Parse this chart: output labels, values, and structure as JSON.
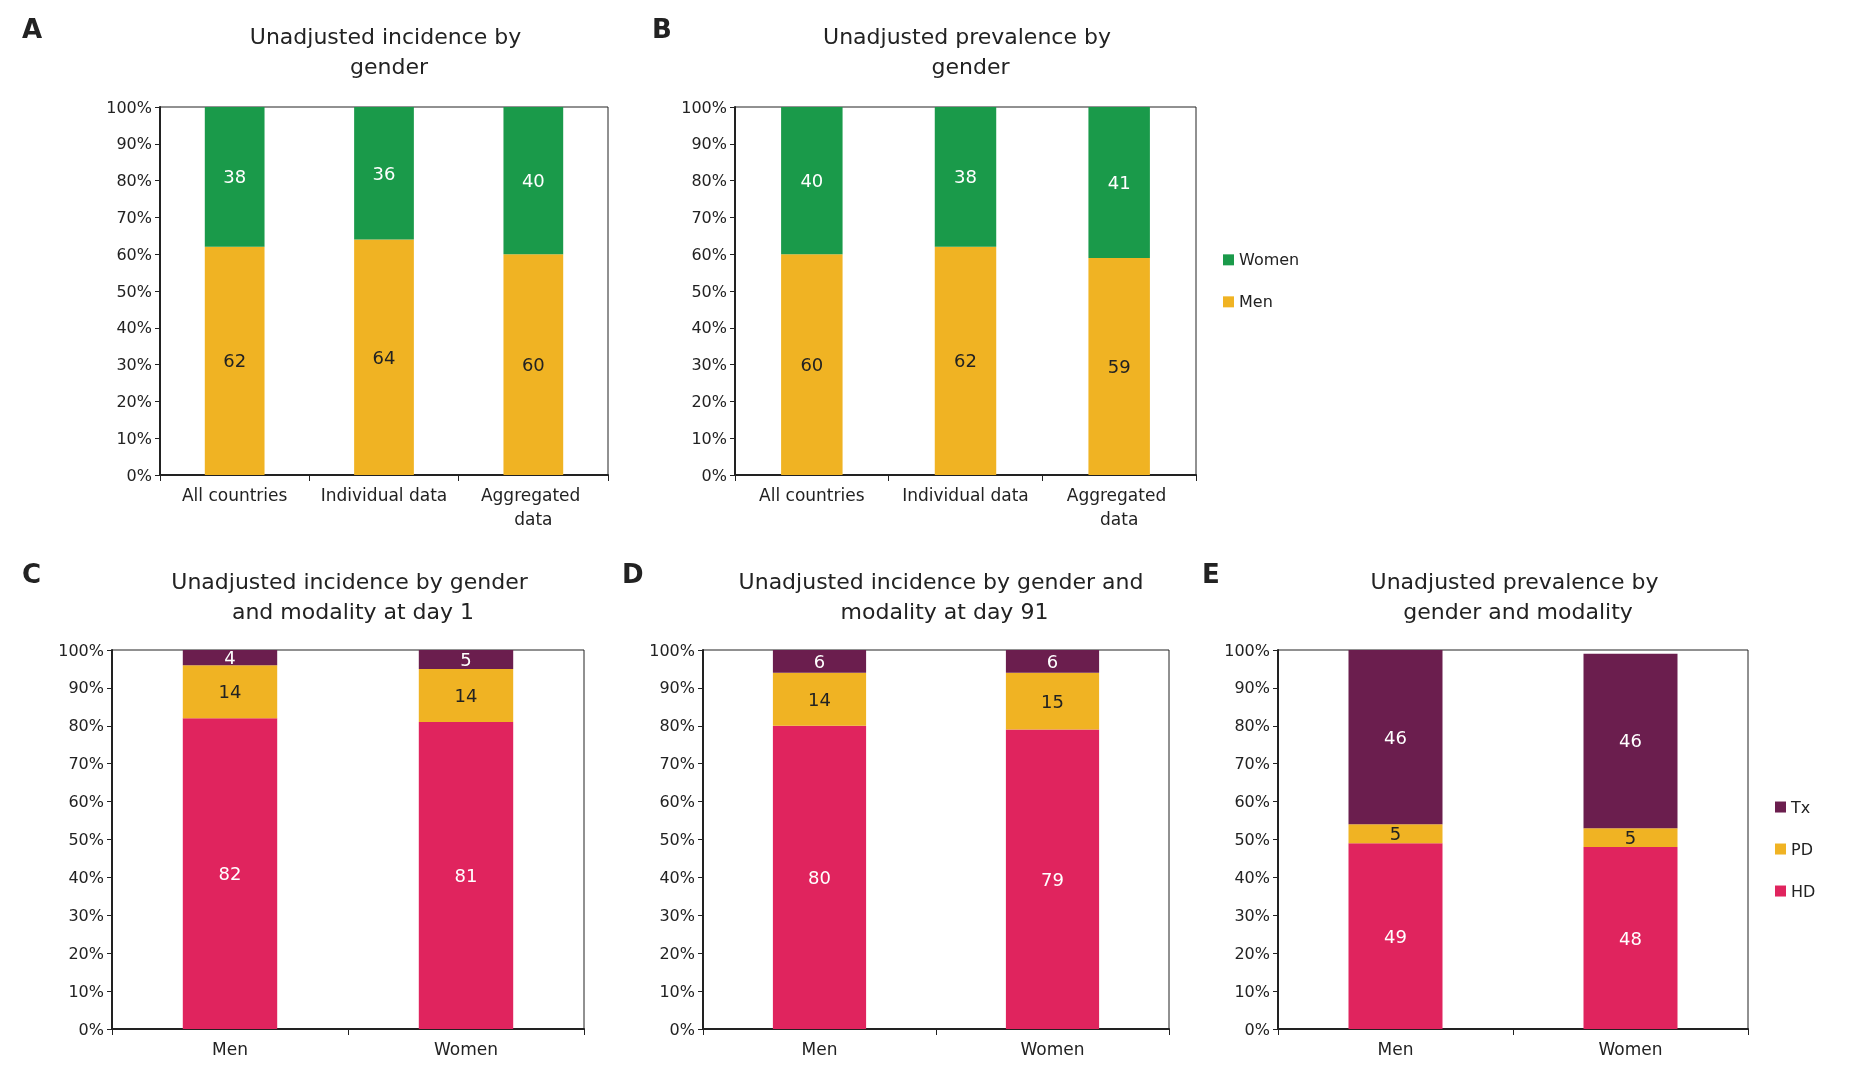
{
  "chart_data": [
    {
      "type": "bar",
      "title": "Unadjusted incidence by gender",
      "annotations": [
        "A"
      ],
      "stacked": true,
      "categories": [
        "All countries",
        "Individual data",
        "Aggregated data"
      ],
      "series": [
        {
          "color": "#f0b323",
          "values": [
            62,
            64,
            60
          ]
        },
        {
          "color": "#1a9a4a",
          "values": [
            38,
            36,
            40
          ]
        }
      ],
      "ylim": [
        0,
        100
      ],
      "yticks": [
        {
          "value": 0,
          "label": "0%"
        },
        {
          "value": 10,
          "label": "10%"
        },
        {
          "value": 20,
          "label": "20%"
        },
        {
          "value": 30,
          "label": "30%"
        },
        {
          "value": 40,
          "label": "40%"
        },
        {
          "value": 50,
          "label": "50%"
        },
        {
          "value": 60,
          "label": "60%"
        },
        {
          "value": 70,
          "label": "70%"
        },
        {
          "value": 80,
          "label": "80%"
        },
        {
          "value": 90,
          "label": "90%"
        },
        {
          "value": 100,
          "label": "100%"
        }
      ],
      "data_labels": true,
      "grid": false,
      "legend": false
    },
    {
      "type": "bar",
      "title": "Unadjusted prevalence by gender",
      "annotations": [
        "B"
      ],
      "stacked": true,
      "categories": [
        "All countries",
        "Individual data",
        "Aggregated data"
      ],
      "series": [
        {
          "name": "Men",
          "color": "#f0b323",
          "values": [
            60,
            62,
            59
          ]
        },
        {
          "name": "Women",
          "color": "#1a9a4a",
          "values": [
            40,
            38,
            41
          ]
        }
      ],
      "ylim": [
        0,
        100
      ],
      "yticks": [
        {
          "value": 0,
          "label": "0%"
        },
        {
          "value": 10,
          "label": "10%"
        },
        {
          "value": 20,
          "label": "20%"
        },
        {
          "value": 30,
          "label": "30%"
        },
        {
          "value": 40,
          "label": "40%"
        },
        {
          "value": 50,
          "label": "50%"
        },
        {
          "value": 60,
          "label": "60%"
        },
        {
          "value": 70,
          "label": "70%"
        },
        {
          "value": 80,
          "label": "80%"
        },
        {
          "value": 90,
          "label": "90%"
        },
        {
          "value": 100,
          "label": "100%"
        }
      ],
      "data_labels": true,
      "grid": false,
      "legend": "right"
    },
    {
      "type": "bar",
      "title": "Unadjusted incidence by gender and modality at day 1",
      "annotations": [
        "C"
      ],
      "stacked": true,
      "categories": [
        "Men",
        "Women"
      ],
      "series": [
        {
          "color": "#e0245e",
          "values": [
            82,
            81
          ]
        },
        {
          "color": "#f0b323",
          "values": [
            14,
            14
          ]
        },
        {
          "color": "#6b1e4e",
          "values": [
            4,
            5
          ]
        }
      ],
      "ylim": [
        0,
        100
      ],
      "yticks": [
        {
          "value": 0,
          "label": "0%"
        },
        {
          "value": 10,
          "label": "10%"
        },
        {
          "value": 20,
          "label": "20%"
        },
        {
          "value": 30,
          "label": "30%"
        },
        {
          "value": 40,
          "label": "40%"
        },
        {
          "value": 50,
          "label": "50%"
        },
        {
          "value": 60,
          "label": "60%"
        },
        {
          "value": 70,
          "label": "70%"
        },
        {
          "value": 80,
          "label": "80%"
        },
        {
          "value": 90,
          "label": "90%"
        },
        {
          "value": 100,
          "label": "100%"
        }
      ],
      "data_labels": true,
      "grid": false,
      "legend": false
    },
    {
      "type": "bar",
      "title": "Unadjusted incidence by gender and modality at day 91",
      "annotations": [
        "D"
      ],
      "stacked": true,
      "categories": [
        "Men",
        "Women"
      ],
      "series": [
        {
          "color": "#e0245e",
          "values": [
            80,
            79
          ]
        },
        {
          "color": "#f0b323",
          "values": [
            14,
            15
          ]
        },
        {
          "color": "#6b1e4e",
          "values": [
            6,
            6
          ]
        }
      ],
      "ylim": [
        0,
        100
      ],
      "yticks": [
        {
          "value": 0,
          "label": "0%"
        },
        {
          "value": 10,
          "label": "10%"
        },
        {
          "value": 20,
          "label": "20%"
        },
        {
          "value": 30,
          "label": "30%"
        },
        {
          "value": 40,
          "label": "40%"
        },
        {
          "value": 50,
          "label": "50%"
        },
        {
          "value": 60,
          "label": "60%"
        },
        {
          "value": 70,
          "label": "70%"
        },
        {
          "value": 80,
          "label": "80%"
        },
        {
          "value": 90,
          "label": "90%"
        },
        {
          "value": 100,
          "label": "100%"
        }
      ],
      "data_labels": true,
      "grid": false,
      "legend": false
    },
    {
      "type": "bar",
      "title": "Unadjusted prevalence by gender and modality",
      "annotations": [
        "E"
      ],
      "stacked": true,
      "categories": [
        "Men",
        "Women"
      ],
      "series": [
        {
          "name": "HD",
          "color": "#e0245e",
          "values": [
            49,
            48
          ]
        },
        {
          "name": "PD",
          "color": "#f0b323",
          "values": [
            5,
            5
          ]
        },
        {
          "name": "Tx",
          "color": "#6b1e4e",
          "values": [
            46,
            46
          ]
        }
      ],
      "ylim": [
        0,
        100
      ],
      "yticks": [
        {
          "value": 0,
          "label": "0%"
        },
        {
          "value": 10,
          "label": "10%"
        },
        {
          "value": 20,
          "label": "20%"
        },
        {
          "value": 30,
          "label": "30%"
        },
        {
          "value": 40,
          "label": "40%"
        },
        {
          "value": 50,
          "label": "50%"
        },
        {
          "value": 60,
          "label": "60%"
        },
        {
          "value": 70,
          "label": "70%"
        },
        {
          "value": 80,
          "label": "80%"
        },
        {
          "value": 90,
          "label": "90%"
        },
        {
          "value": 100,
          "label": "100%"
        }
      ],
      "data_labels": true,
      "grid": false,
      "legend": "right"
    }
  ]
}
